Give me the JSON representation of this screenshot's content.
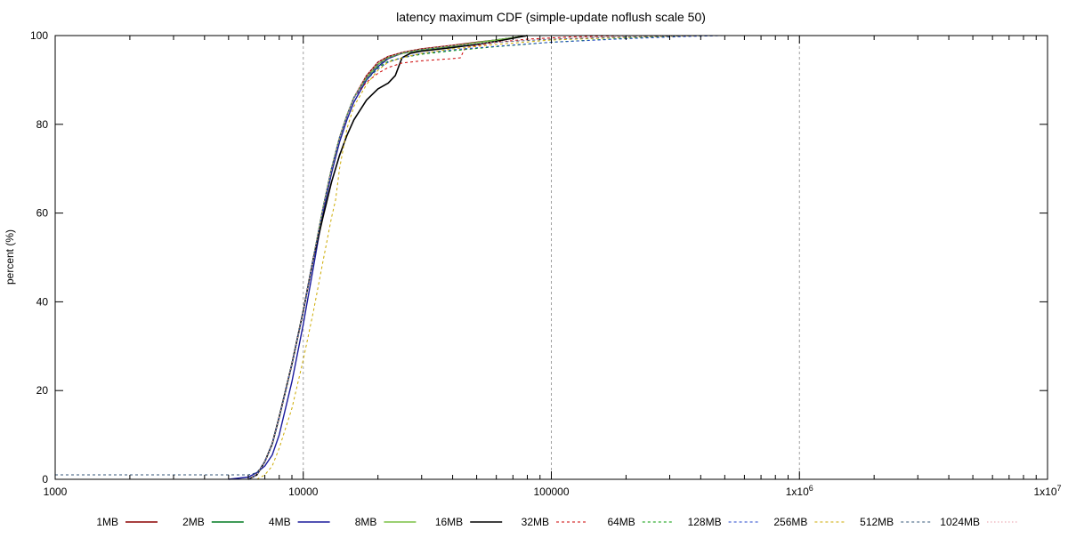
{
  "chart_data": {
    "type": "line",
    "title": "latency maximum CDF (simple-update noflush scale 50)",
    "xlabel": "",
    "ylabel": "percent (%)",
    "xscale": "log",
    "xlim": [
      1000,
      10000000
    ],
    "ylim": [
      0,
      100
    ],
    "grid": "vertical dashed lines at major x ticks",
    "legend_position": "bottom",
    "x_tick_labels": [
      {
        "value": 1000,
        "label": "1000"
      },
      {
        "value": 10000,
        "label": "10000"
      },
      {
        "value": 100000,
        "label": "100000"
      },
      {
        "value": 1000000,
        "label": "1x10",
        "sup": "6"
      },
      {
        "value": 10000000,
        "label": "1x10",
        "sup": "7"
      }
    ],
    "y_tick_labels": [
      {
        "value": 0,
        "label": "0"
      },
      {
        "value": 20,
        "label": "20"
      },
      {
        "value": 40,
        "label": "40"
      },
      {
        "value": 60,
        "label": "60"
      },
      {
        "value": 80,
        "label": "80"
      },
      {
        "value": 100,
        "label": "100"
      }
    ],
    "series": [
      {
        "name": "1MB",
        "color": "#8b0000",
        "style": "solid",
        "width": 1.4,
        "points": [
          [
            6000,
            0
          ],
          [
            6500,
            1
          ],
          [
            7000,
            4
          ],
          [
            7500,
            8
          ],
          [
            8000,
            14
          ],
          [
            9000,
            26
          ],
          [
            10000,
            38
          ],
          [
            11000,
            50
          ],
          [
            12000,
            61
          ],
          [
            13000,
            70
          ],
          [
            14000,
            77
          ],
          [
            15000,
            82
          ],
          [
            16000,
            86
          ],
          [
            18000,
            91
          ],
          [
            20000,
            94
          ],
          [
            22000,
            95.3
          ],
          [
            25000,
            96.2
          ],
          [
            30000,
            97
          ],
          [
            40000,
            97.8
          ],
          [
            50000,
            98.5
          ],
          [
            60000,
            99
          ],
          [
            70000,
            99.5
          ],
          [
            80000,
            100
          ]
        ]
      },
      {
        "name": "2MB",
        "color": "#007a20",
        "style": "solid",
        "width": 1.4,
        "points": [
          [
            6000,
            0
          ],
          [
            6500,
            1
          ],
          [
            7000,
            4
          ],
          [
            7500,
            8
          ],
          [
            8000,
            14
          ],
          [
            9000,
            26
          ],
          [
            10000,
            38
          ],
          [
            11000,
            50
          ],
          [
            12000,
            61
          ],
          [
            13000,
            70
          ],
          [
            14000,
            77
          ],
          [
            15000,
            82
          ],
          [
            16000,
            86
          ],
          [
            18000,
            90.5
          ],
          [
            20000,
            93.5
          ],
          [
            22000,
            95
          ],
          [
            25000,
            96
          ],
          [
            30000,
            96.8
          ],
          [
            40000,
            97.6
          ],
          [
            50000,
            98.4
          ],
          [
            60000,
            99
          ],
          [
            70000,
            99.5
          ],
          [
            80000,
            100
          ]
        ]
      },
      {
        "name": "4MB",
        "color": "#1a1a9c",
        "style": "solid",
        "width": 1.4,
        "points": [
          [
            5000,
            0
          ],
          [
            6000,
            0.5
          ],
          [
            6500,
            1.5
          ],
          [
            7000,
            3
          ],
          [
            7500,
            5.5
          ],
          [
            8000,
            10
          ],
          [
            9000,
            22
          ],
          [
            10000,
            35
          ],
          [
            11000,
            48
          ],
          [
            12000,
            60
          ],
          [
            13000,
            69
          ],
          [
            14000,
            76
          ],
          [
            15000,
            81
          ],
          [
            16000,
            85
          ],
          [
            18000,
            90
          ],
          [
            20000,
            93
          ],
          [
            22000,
            94.8
          ],
          [
            25000,
            96
          ],
          [
            30000,
            96.8
          ],
          [
            40000,
            97.6
          ],
          [
            50000,
            98.4
          ],
          [
            60000,
            99
          ],
          [
            70000,
            99.5
          ],
          [
            80000,
            100
          ]
        ]
      },
      {
        "name": "8MB",
        "color": "#7ac143",
        "style": "solid",
        "width": 1.4,
        "points": [
          [
            6000,
            0
          ],
          [
            6500,
            1
          ],
          [
            7000,
            4
          ],
          [
            7500,
            8
          ],
          [
            8000,
            14
          ],
          [
            9000,
            26
          ],
          [
            10000,
            38
          ],
          [
            11000,
            50
          ],
          [
            12000,
            61
          ],
          [
            13000,
            70
          ],
          [
            14000,
            77
          ],
          [
            15000,
            82
          ],
          [
            16000,
            86
          ],
          [
            18000,
            90.5
          ],
          [
            20000,
            93.5
          ],
          [
            22000,
            95
          ],
          [
            25000,
            96
          ],
          [
            30000,
            96.8
          ],
          [
            40000,
            97.6
          ],
          [
            50000,
            98.4
          ],
          [
            60000,
            99
          ],
          [
            70000,
            99.5
          ],
          [
            80000,
            100
          ]
        ]
      },
      {
        "name": "16MB",
        "color": "#000000",
        "style": "solid",
        "width": 1.6,
        "points": [
          [
            6000,
            0
          ],
          [
            6500,
            1
          ],
          [
            7000,
            4
          ],
          [
            7500,
            8
          ],
          [
            8000,
            14
          ],
          [
            9000,
            26
          ],
          [
            10000,
            38
          ],
          [
            11000,
            50
          ],
          [
            12000,
            59
          ],
          [
            13000,
            67
          ],
          [
            14000,
            73
          ],
          [
            15000,
            77.5
          ],
          [
            16000,
            81
          ],
          [
            18000,
            85.5
          ],
          [
            20000,
            88
          ],
          [
            22000,
            89.3
          ],
          [
            23500,
            91
          ],
          [
            25000,
            95
          ],
          [
            27000,
            96
          ],
          [
            30000,
            96.5
          ],
          [
            40000,
            97.3
          ],
          [
            50000,
            98
          ],
          [
            60000,
            98.7
          ],
          [
            80000,
            100
          ]
        ]
      },
      {
        "name": "32MB",
        "color": "#cc0000",
        "style": "dashed",
        "width": 1,
        "points": [
          [
            6000,
            0
          ],
          [
            6500,
            1
          ],
          [
            7000,
            4
          ],
          [
            7500,
            8
          ],
          [
            8000,
            14
          ],
          [
            9000,
            26
          ],
          [
            10000,
            38
          ],
          [
            11000,
            50
          ],
          [
            12000,
            61
          ],
          [
            13000,
            70
          ],
          [
            14000,
            77
          ],
          [
            15000,
            82
          ],
          [
            16000,
            86
          ],
          [
            18000,
            89.5
          ],
          [
            20000,
            91.5
          ],
          [
            22000,
            92.8
          ],
          [
            25000,
            93.8
          ],
          [
            30000,
            94.3
          ],
          [
            40000,
            94.8
          ],
          [
            43000,
            95
          ],
          [
            45000,
            97.3
          ],
          [
            60000,
            98.5
          ],
          [
            80000,
            99.2
          ],
          [
            120000,
            99.7
          ],
          [
            200000,
            100
          ]
        ]
      },
      {
        "name": "64MB",
        "color": "#009900",
        "style": "dashed",
        "width": 1,
        "points": [
          [
            6000,
            0
          ],
          [
            6500,
            1
          ],
          [
            7000,
            4
          ],
          [
            7500,
            8
          ],
          [
            8000,
            14
          ],
          [
            9000,
            26
          ],
          [
            10000,
            38
          ],
          [
            11000,
            50
          ],
          [
            12000,
            61
          ],
          [
            13000,
            70
          ],
          [
            14000,
            77
          ],
          [
            15000,
            82
          ],
          [
            16000,
            86
          ],
          [
            18000,
            90
          ],
          [
            20000,
            92.8
          ],
          [
            22000,
            94.2
          ],
          [
            25000,
            95
          ],
          [
            30000,
            95.8
          ],
          [
            40000,
            96.6
          ],
          [
            60000,
            97.5
          ],
          [
            100000,
            98.5
          ],
          [
            200000,
            99.4
          ],
          [
            300000,
            99.8
          ],
          [
            450000,
            100
          ]
        ]
      },
      {
        "name": "128MB",
        "color": "#2244cc",
        "style": "dashed",
        "width": 1,
        "points": [
          [
            6000,
            0
          ],
          [
            6500,
            1
          ],
          [
            7000,
            4
          ],
          [
            7500,
            8
          ],
          [
            8000,
            14
          ],
          [
            9000,
            26
          ],
          [
            10000,
            38
          ],
          [
            11000,
            50
          ],
          [
            12000,
            61
          ],
          [
            13000,
            70
          ],
          [
            14000,
            77
          ],
          [
            15000,
            82
          ],
          [
            16000,
            86
          ],
          [
            18000,
            90
          ],
          [
            20000,
            92.5
          ],
          [
            22000,
            94
          ],
          [
            25000,
            95
          ],
          [
            30000,
            96
          ],
          [
            40000,
            96.8
          ],
          [
            60000,
            97.6
          ],
          [
            100000,
            98.5
          ],
          [
            200000,
            99.3
          ],
          [
            350000,
            99.8
          ],
          [
            500000,
            100
          ]
        ]
      },
      {
        "name": "256MB",
        "color": "#ccaa00",
        "style": "dashed",
        "width": 1,
        "points": [
          [
            6500,
            0
          ],
          [
            7000,
            1
          ],
          [
            7500,
            3
          ],
          [
            8000,
            7
          ],
          [
            9000,
            16
          ],
          [
            10000,
            27
          ],
          [
            11000,
            38
          ],
          [
            12000,
            49
          ],
          [
            13000,
            59
          ],
          [
            13500,
            63
          ],
          [
            14000,
            70
          ],
          [
            15000,
            79
          ],
          [
            16000,
            84
          ],
          [
            18000,
            89
          ],
          [
            20000,
            92.2
          ],
          [
            22000,
            94
          ],
          [
            25000,
            95
          ],
          [
            30000,
            96
          ],
          [
            40000,
            97
          ],
          [
            60000,
            98
          ],
          [
            100000,
            99
          ],
          [
            200000,
            99.6
          ],
          [
            400000,
            100
          ]
        ]
      },
      {
        "name": "512MB",
        "color": "#335577",
        "style": "dashed",
        "width": 1,
        "points": [
          [
            1000,
            1
          ],
          [
            6000,
            1
          ],
          [
            6500,
            1.5
          ],
          [
            7000,
            4
          ],
          [
            7500,
            8
          ],
          [
            8000,
            14
          ],
          [
            9000,
            26
          ],
          [
            10000,
            38
          ],
          [
            11000,
            50
          ],
          [
            12000,
            61
          ],
          [
            13000,
            70
          ],
          [
            14000,
            77
          ],
          [
            15000,
            82
          ],
          [
            16000,
            86
          ],
          [
            18000,
            90.5
          ],
          [
            20000,
            93.5
          ],
          [
            22000,
            95
          ],
          [
            25000,
            96
          ],
          [
            30000,
            96.8
          ],
          [
            40000,
            97.6
          ],
          [
            60000,
            98.5
          ],
          [
            100000,
            99.2
          ],
          [
            200000,
            99.7
          ],
          [
            400000,
            100
          ]
        ]
      },
      {
        "name": "1024MB",
        "color": "#e89aa6",
        "style": "dotted",
        "width": 1,
        "points": [
          [
            6000,
            0
          ],
          [
            6500,
            1
          ],
          [
            7000,
            4
          ],
          [
            7500,
            8
          ],
          [
            8000,
            14
          ],
          [
            9000,
            26
          ],
          [
            10000,
            38
          ],
          [
            11000,
            50
          ],
          [
            12000,
            61
          ],
          [
            13000,
            70
          ],
          [
            14000,
            77
          ],
          [
            15000,
            82
          ],
          [
            16000,
            86
          ],
          [
            18000,
            91
          ],
          [
            20000,
            94
          ],
          [
            22000,
            95.3
          ],
          [
            25000,
            96.2
          ],
          [
            30000,
            97
          ],
          [
            40000,
            97.8
          ],
          [
            60000,
            98.6
          ],
          [
            100000,
            99.3
          ],
          [
            200000,
            99.8
          ],
          [
            400000,
            100
          ]
        ]
      }
    ]
  }
}
